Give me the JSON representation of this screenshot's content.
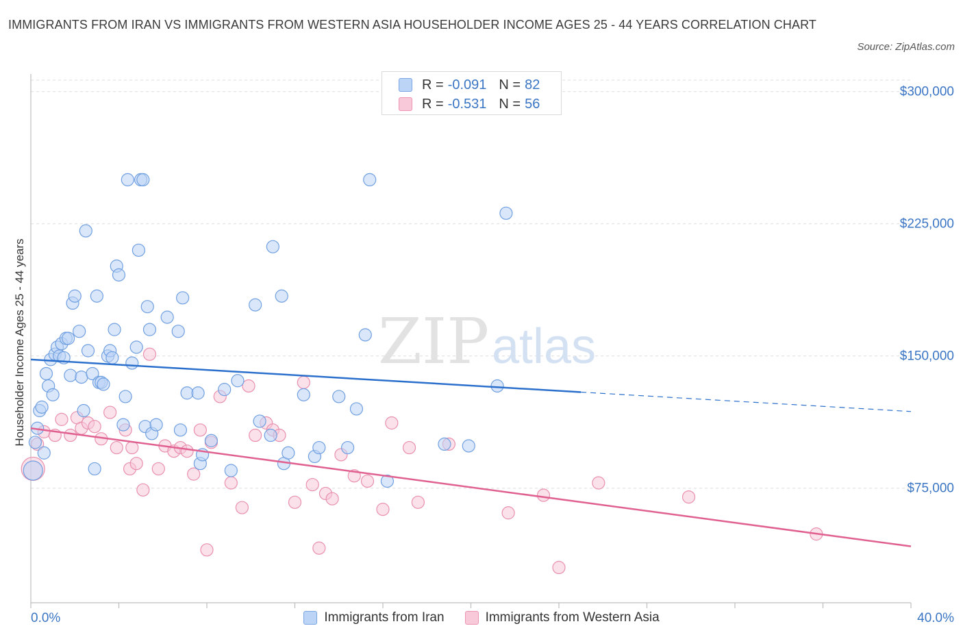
{
  "header": {
    "title": "IMMIGRANTS FROM IRAN VS IMMIGRANTS FROM WESTERN ASIA HOUSEHOLDER INCOME AGES 25 - 44 YEARS CORRELATION CHART",
    "source": "Source: ZipAtlas.com"
  },
  "watermark": {
    "zip": "ZIP",
    "atlas": "atlas"
  },
  "stats": {
    "iran": {
      "r_label": "R =",
      "r": "-0.091",
      "n_label": "N =",
      "n": "82"
    },
    "western_asia": {
      "r_label": "R =",
      "r": "-0.531",
      "n_label": "N =",
      "n": "56"
    }
  },
  "colors": {
    "iran_fill": "#bcd4f5",
    "iran_stroke": "#6f9fe0",
    "iran_line": "#2a6fcc",
    "wasia_fill": "#f8c9d8",
    "wasia_stroke": "#e98fae",
    "wasia_line": "#e06090",
    "grid": "#dcdcdc",
    "tick_label": "#3a75c4"
  },
  "chart_data": {
    "type": "scatter",
    "title": "IMMIGRANTS FROM IRAN VS IMMIGRANTS FROM WESTERN ASIA HOUSEHOLDER INCOME AGES 25 - 44 YEARS CORRELATION CHART",
    "xlabel": "",
    "ylabel": "Householder Income Ages 25 - 44 years",
    "xlim": [
      0,
      40
    ],
    "ylim": [
      10000,
      310000
    ],
    "x_tick_labels": [
      {
        "value": 0,
        "label": "0.0%"
      },
      {
        "value": 40,
        "label": "40.0%"
      }
    ],
    "y_ticks": [
      {
        "value": 75000,
        "label": "$75,000"
      },
      {
        "value": 150000,
        "label": "$150,000"
      },
      {
        "value": 225000,
        "label": "$225,000"
      },
      {
        "value": 300000,
        "label": "$300,000"
      }
    ],
    "grid": "horizontal dashed",
    "legend": "bottom-center",
    "series": [
      {
        "name": "Immigrants from Iran",
        "trend": {
          "x0": 0,
          "y0": 148000,
          "x1": 25,
          "y1": 129500,
          "dash_to_x": 40,
          "dash_to_y": 118500
        },
        "points": [
          [
            0.1,
            85000
          ],
          [
            0.2,
            101000
          ],
          [
            0.3,
            109000
          ],
          [
            0.4,
            119000
          ],
          [
            0.5,
            121000
          ],
          [
            0.6,
            95000
          ],
          [
            0.7,
            140000
          ],
          [
            0.8,
            133000
          ],
          [
            0.9,
            148000
          ],
          [
            1.0,
            128000
          ],
          [
            1.1,
            151000
          ],
          [
            1.2,
            155000
          ],
          [
            1.3,
            150000
          ],
          [
            1.4,
            157000
          ],
          [
            1.5,
            149000
          ],
          [
            1.6,
            160000
          ],
          [
            1.7,
            160000
          ],
          [
            1.8,
            139000
          ],
          [
            1.9,
            180000
          ],
          [
            2.0,
            184000
          ],
          [
            2.2,
            164000
          ],
          [
            2.3,
            138000
          ],
          [
            2.4,
            119000
          ],
          [
            2.5,
            221000
          ],
          [
            2.6,
            153000
          ],
          [
            2.8,
            140000
          ],
          [
            2.9,
            86000
          ],
          [
            3.0,
            184000
          ],
          [
            3.1,
            135000
          ],
          [
            3.2,
            135000
          ],
          [
            3.3,
            134000
          ],
          [
            3.5,
            150000
          ],
          [
            3.6,
            153000
          ],
          [
            3.7,
            149000
          ],
          [
            3.8,
            165000
          ],
          [
            3.9,
            201000
          ],
          [
            4.0,
            196000
          ],
          [
            4.2,
            111000
          ],
          [
            4.3,
            127000
          ],
          [
            4.4,
            250000
          ],
          [
            4.6,
            146000
          ],
          [
            4.8,
            155000
          ],
          [
            4.9,
            210000
          ],
          [
            5.0,
            250000
          ],
          [
            5.1,
            250000
          ],
          [
            5.2,
            110000
          ],
          [
            5.3,
            178000
          ],
          [
            5.4,
            165000
          ],
          [
            5.5,
            106000
          ],
          [
            5.7,
            111000
          ],
          [
            6.2,
            172000
          ],
          [
            6.7,
            164000
          ],
          [
            6.8,
            108000
          ],
          [
            6.9,
            183000
          ],
          [
            7.1,
            129000
          ],
          [
            7.6,
            129000
          ],
          [
            7.7,
            89000
          ],
          [
            7.8,
            94000
          ],
          [
            8.2,
            102000
          ],
          [
            8.8,
            131000
          ],
          [
            9.1,
            85000
          ],
          [
            9.4,
            136000
          ],
          [
            10.2,
            179000
          ],
          [
            10.4,
            113000
          ],
          [
            10.9,
            105000
          ],
          [
            11.0,
            212000
          ],
          [
            11.4,
            184000
          ],
          [
            11.5,
            89000
          ],
          [
            11.7,
            95000
          ],
          [
            12.4,
            128000
          ],
          [
            12.9,
            93000
          ],
          [
            13.1,
            98000
          ],
          [
            14.0,
            127000
          ],
          [
            14.4,
            98000
          ],
          [
            14.8,
            120000
          ],
          [
            15.2,
            162000
          ],
          [
            15.4,
            250000
          ],
          [
            16.2,
            79000
          ],
          [
            18.8,
            100000
          ],
          [
            19.9,
            99000
          ],
          [
            21.2,
            133000
          ],
          [
            21.6,
            231000
          ]
        ]
      },
      {
        "name": "Immigrants from Western Asia",
        "trend": {
          "x0": 0,
          "y0": 109000,
          "x1": 40,
          "y1": 42000
        },
        "points": [
          [
            0.1,
            86000
          ],
          [
            0.3,
            100000
          ],
          [
            0.6,
            107000
          ],
          [
            1.1,
            105000
          ],
          [
            1.4,
            114000
          ],
          [
            1.8,
            105000
          ],
          [
            2.1,
            115000
          ],
          [
            2.3,
            109000
          ],
          [
            2.6,
            112000
          ],
          [
            2.9,
            110000
          ],
          [
            3.2,
            103000
          ],
          [
            3.6,
            118000
          ],
          [
            3.9,
            98000
          ],
          [
            4.3,
            108000
          ],
          [
            4.5,
            86000
          ],
          [
            4.8,
            89000
          ],
          [
            5.1,
            74000
          ],
          [
            5.4,
            151000
          ],
          [
            5.8,
            86000
          ],
          [
            6.1,
            99000
          ],
          [
            6.5,
            96000
          ],
          [
            6.8,
            98000
          ],
          [
            7.1,
            96000
          ],
          [
            7.4,
            83000
          ],
          [
            7.7,
            108000
          ],
          [
            8.0,
            40000
          ],
          [
            8.2,
            101000
          ],
          [
            8.6,
            127000
          ],
          [
            9.1,
            78000
          ],
          [
            9.6,
            64000
          ],
          [
            9.9,
            133000
          ],
          [
            10.2,
            105000
          ],
          [
            10.7,
            112000
          ],
          [
            11.0,
            108000
          ],
          [
            11.3,
            105000
          ],
          [
            12.0,
            67000
          ],
          [
            12.4,
            135000
          ],
          [
            12.8,
            77000
          ],
          [
            13.1,
            41000
          ],
          [
            13.4,
            72000
          ],
          [
            13.7,
            69000
          ],
          [
            14.1,
            94000
          ],
          [
            14.7,
            82000
          ],
          [
            15.3,
            79000
          ],
          [
            16.0,
            63000
          ],
          [
            16.4,
            112000
          ],
          [
            17.2,
            98000
          ],
          [
            17.6,
            67000
          ],
          [
            19.0,
            100000
          ],
          [
            21.7,
            61000
          ],
          [
            23.3,
            71000
          ],
          [
            24.0,
            30000
          ],
          [
            25.8,
            78000
          ],
          [
            29.9,
            70000
          ],
          [
            35.7,
            49000
          ],
          [
            4.6,
            98000
          ]
        ]
      }
    ]
  },
  "legend": {
    "iran_label": "Immigrants from Iran",
    "wasia_label": "Immigrants from Western Asia"
  }
}
